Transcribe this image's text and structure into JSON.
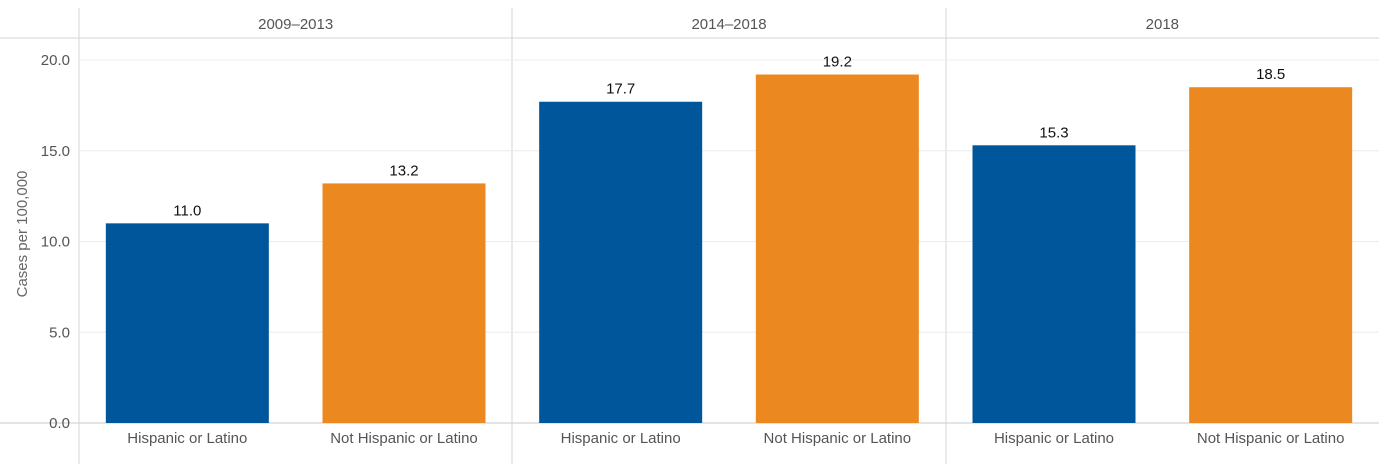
{
  "chart_data": {
    "type": "bar",
    "ylabel": "Cases per 100,000",
    "ylim": [
      0,
      20
    ],
    "yticks": [
      "0.0",
      "5.0",
      "10.0",
      "15.0",
      "20.0"
    ],
    "grid": true,
    "panels": [
      {
        "title": "2009–2013",
        "categories": [
          "Hispanic or Latino",
          "Not Hispanic or Latino"
        ],
        "values": [
          11.0,
          13.2
        ],
        "labels": [
          "11.0",
          "13.2"
        ]
      },
      {
        "title": "2014–2018",
        "categories": [
          "Hispanic or Latino",
          "Not Hispanic or Latino"
        ],
        "values": [
          17.7,
          19.2
        ],
        "labels": [
          "17.7",
          "19.2"
        ]
      },
      {
        "title": "2018",
        "categories": [
          "Hispanic or Latino",
          "Not Hispanic or Latino"
        ],
        "values": [
          15.3,
          18.5
        ],
        "labels": [
          "15.3",
          "18.5"
        ]
      }
    ],
    "colors": {
      "Hispanic or Latino": "#00569a",
      "Not Hispanic or Latino": "#eb881f"
    }
  }
}
